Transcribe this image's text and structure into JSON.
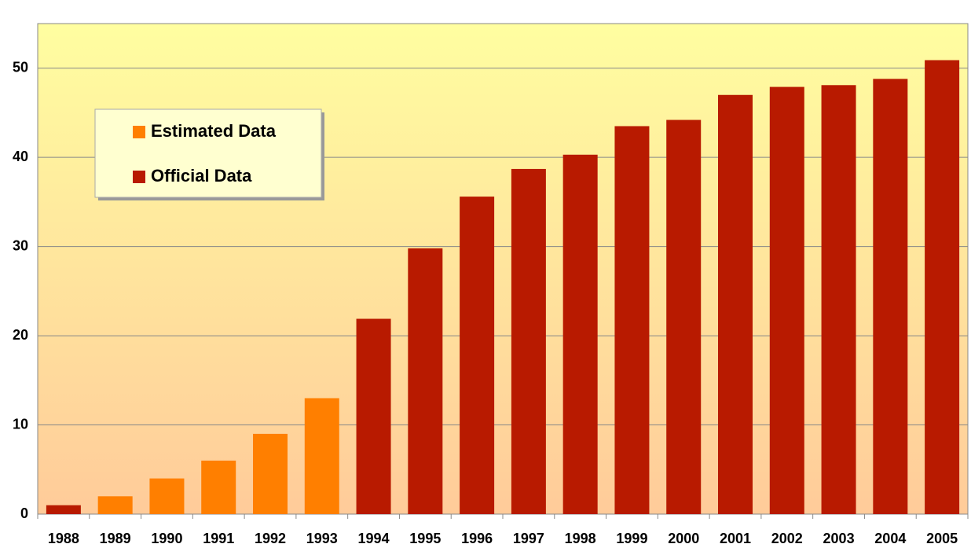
{
  "chart_data": {
    "type": "bar",
    "categories": [
      "1988",
      "1989",
      "1990",
      "1991",
      "1992",
      "1993",
      "1994",
      "1995",
      "1996",
      "1997",
      "1998",
      "1999",
      "2000",
      "2001",
      "2002",
      "2003",
      "2004",
      "2005"
    ],
    "series": [
      {
        "name": "Estimated Data",
        "color": "#ff7f00",
        "values": [
          null,
          2,
          4,
          6,
          9,
          13,
          null,
          null,
          null,
          null,
          null,
          null,
          null,
          null,
          null,
          null,
          null,
          null
        ]
      },
      {
        "name": "Official Data",
        "color": "#b81a00",
        "values": [
          1,
          null,
          null,
          null,
          null,
          null,
          21.9,
          29.8,
          35.6,
          38.7,
          40.3,
          43.5,
          44.2,
          47,
          47.9,
          48.1,
          48.8,
          50.9
        ]
      }
    ],
    "ylim": [
      0,
      55
    ],
    "yticks": [
      0,
      10,
      20,
      30,
      40,
      50
    ],
    "grid": true,
    "legend": "upper left"
  }
}
